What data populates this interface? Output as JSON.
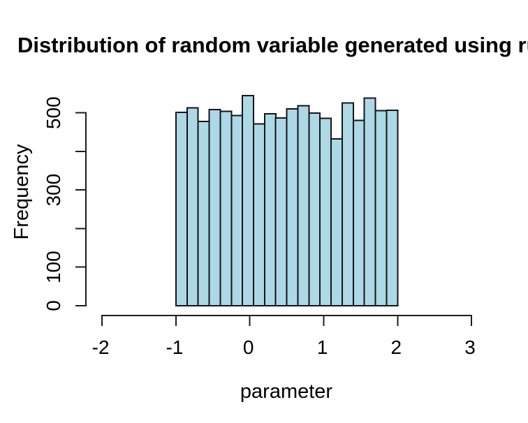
{
  "chart_data": {
    "type": "bar",
    "subtype": "histogram",
    "title": "Distribution of random variable generated using ru",
    "xlabel": "parameter",
    "ylabel": "Frequency",
    "bin_edges": [
      -1.0,
      -0.85,
      -0.7,
      -0.55,
      -0.4,
      -0.25,
      -0.1,
      0.05,
      0.2,
      0.35,
      0.5,
      0.65,
      0.8,
      0.95,
      1.1,
      1.25,
      1.4,
      1.55,
      1.7,
      1.85,
      2.0
    ],
    "values": [
      501,
      513,
      478,
      508,
      504,
      493,
      545,
      471,
      498,
      487,
      510,
      518,
      499,
      486,
      432,
      526,
      480,
      538,
      506,
      507
    ],
    "x_ticks": [
      -2,
      -1,
      0,
      1,
      2,
      3
    ],
    "x_tick_labels": [
      "-2",
      "-1",
      "0",
      "1",
      "2",
      "3"
    ],
    "y_ticks": [
      0,
      100,
      200,
      300,
      400,
      500
    ],
    "y_tick_labels": [
      "0",
      "100",
      "",
      "300",
      "",
      "500"
    ],
    "xlim": [
      -2,
      3
    ],
    "ylim": [
      0,
      500
    ],
    "grid": "off",
    "legend": "none",
    "colors": {
      "bar_fill": "#ADD8E6",
      "bar_stroke": "#141414",
      "axis": "#1c1c1c",
      "text": "#000000",
      "background": "#ffffff"
    }
  }
}
